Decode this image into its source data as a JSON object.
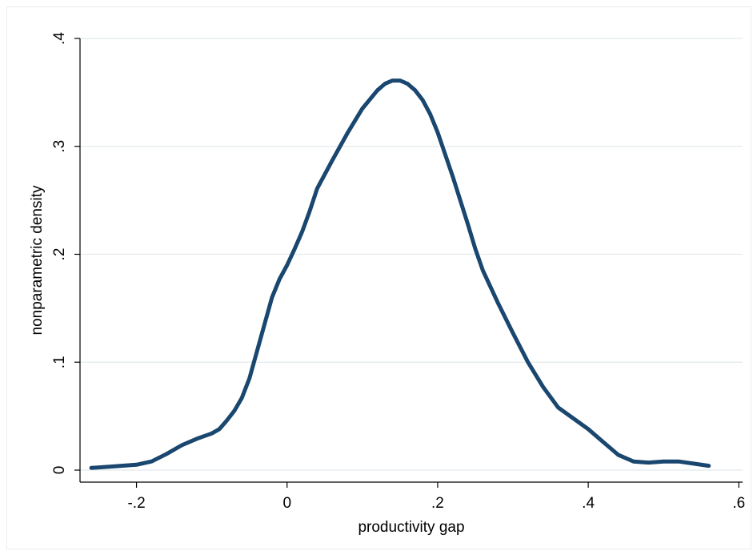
{
  "chart_data": {
    "type": "line",
    "title": "",
    "xlabel": "productivity gap",
    "ylabel": "nonparametric density",
    "xlim": [
      -0.275,
      0.605
    ],
    "ylim": [
      0,
      0.4
    ],
    "grid": true,
    "xticks": [
      {
        "value": -0.2,
        "label": "-.2"
      },
      {
        "value": 0,
        "label": "0"
      },
      {
        "value": 0.2,
        "label": ".2"
      },
      {
        "value": 0.4,
        "label": ".4"
      },
      {
        "value": 0.6,
        "label": ".6"
      }
    ],
    "yticks": [
      {
        "value": 0,
        "label": "0"
      },
      {
        "value": 0.1,
        "label": ".1"
      },
      {
        "value": 0.2,
        "label": ".2"
      },
      {
        "value": 0.3,
        "label": ".3"
      },
      {
        "value": 0.4,
        "label": ".4"
      }
    ],
    "colors": {
      "line": "#1a476f",
      "grid": "#e3eaed",
      "axis": "#000000"
    },
    "series": [
      {
        "x": [
          -0.26,
          -0.24,
          -0.22,
          -0.2,
          -0.18,
          -0.16,
          -0.14,
          -0.12,
          -0.1,
          -0.09,
          -0.08,
          -0.07,
          -0.06,
          -0.05,
          -0.04,
          -0.03,
          -0.02,
          -0.01,
          0.0,
          0.01,
          0.02,
          0.03,
          0.04,
          0.06,
          0.08,
          0.1,
          0.12,
          0.13,
          0.14,
          0.15,
          0.16,
          0.17,
          0.18,
          0.19,
          0.2,
          0.22,
          0.24,
          0.25,
          0.26,
          0.28,
          0.3,
          0.32,
          0.34,
          0.36,
          0.38,
          0.4,
          0.42,
          0.44,
          0.46,
          0.48,
          0.5,
          0.52,
          0.54,
          0.56
        ],
        "y": [
          0.002,
          0.003,
          0.004,
          0.005,
          0.008,
          0.015,
          0.023,
          0.029,
          0.034,
          0.038,
          0.046,
          0.055,
          0.067,
          0.085,
          0.11,
          0.135,
          0.16,
          0.177,
          0.19,
          0.205,
          0.221,
          0.24,
          0.261,
          0.287,
          0.312,
          0.335,
          0.352,
          0.358,
          0.361,
          0.361,
          0.358,
          0.352,
          0.343,
          0.33,
          0.313,
          0.272,
          0.228,
          0.205,
          0.185,
          0.155,
          0.127,
          0.1,
          0.077,
          0.058,
          0.048,
          0.038,
          0.026,
          0.014,
          0.008,
          0.007,
          0.008,
          0.008,
          0.006,
          0.004
        ]
      }
    ]
  }
}
